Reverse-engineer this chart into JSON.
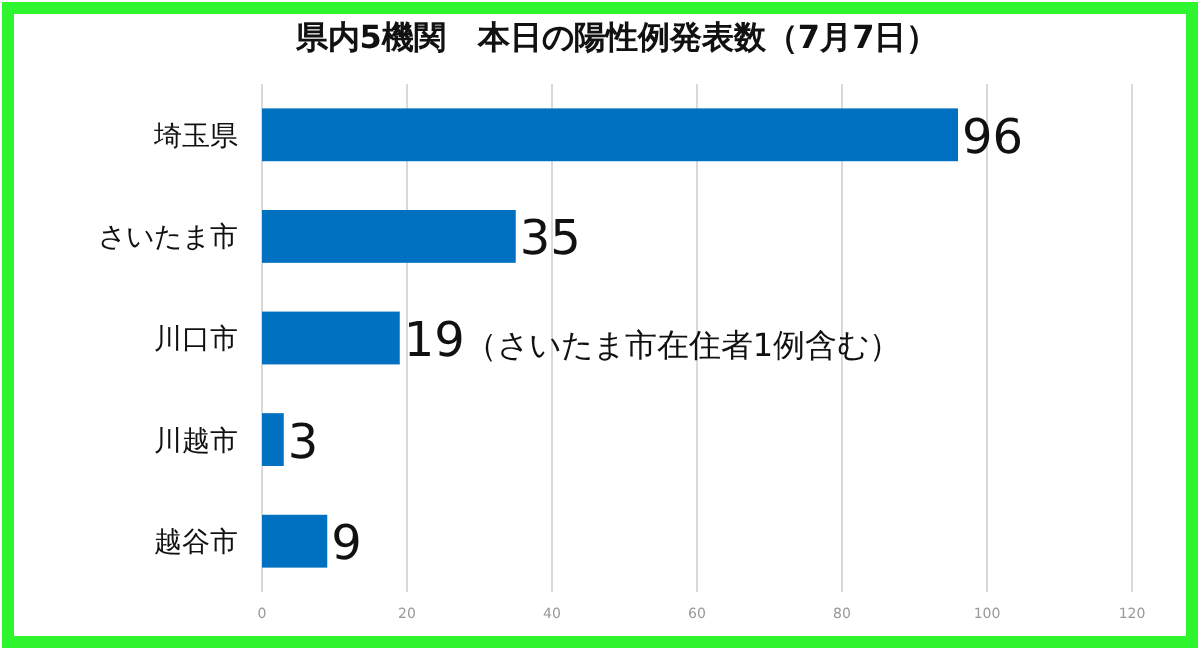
{
  "chart_data": {
    "type": "bar",
    "orientation": "horizontal",
    "title": "県内5機関　本日の陽性例発表数（7月7日）",
    "categories": [
      "埼玉県",
      "さいたま市",
      "川口市",
      "川越市",
      "越谷市"
    ],
    "values": [
      96,
      35,
      19,
      3,
      9
    ],
    "value_labels": [
      "96",
      "35",
      "19（さいたま市在住者1例含む）",
      "3",
      "9"
    ],
    "color": "#0070c0",
    "xlim": [
      0,
      120
    ],
    "xticks": [
      0,
      20,
      40,
      60,
      80,
      100,
      120
    ],
    "grid": "x"
  }
}
